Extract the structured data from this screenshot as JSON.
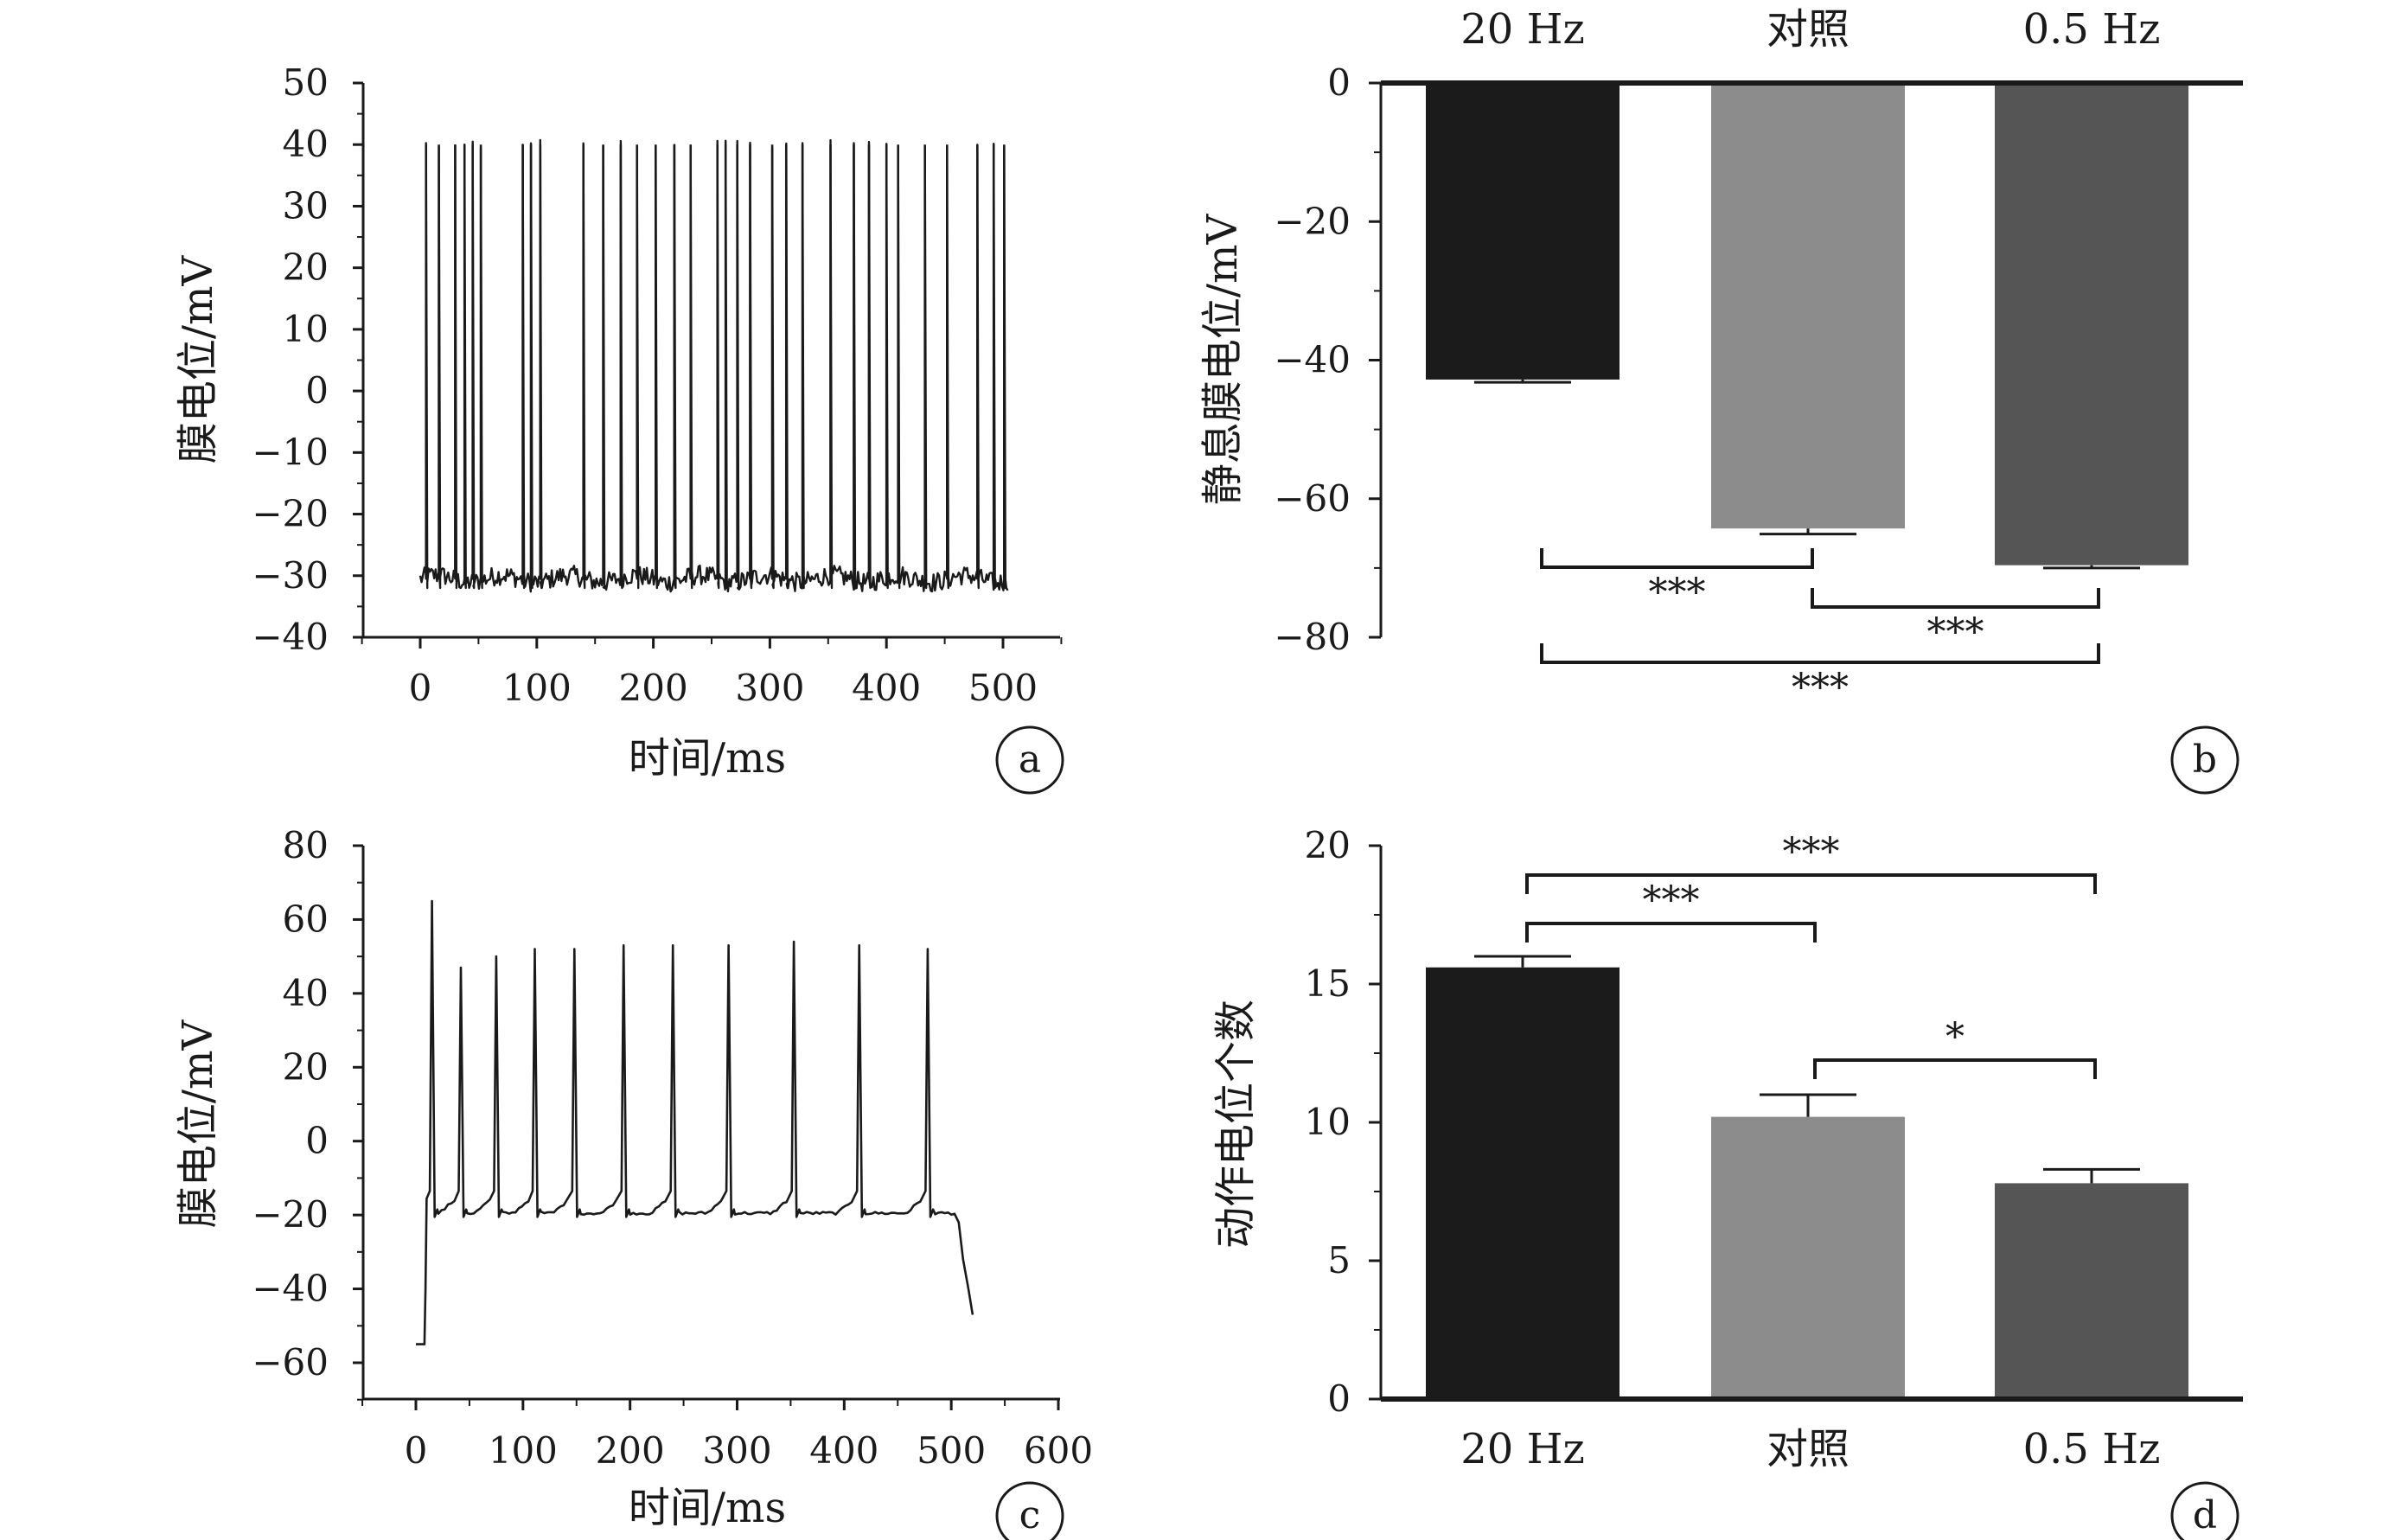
{
  "chart_data": [
    {
      "panel": "a",
      "type": "line",
      "xlabel": "时间/ms",
      "ylabel": "膜电位/mV",
      "xticks": [
        0,
        100,
        200,
        300,
        400,
        500
      ],
      "yticks": [
        50,
        40,
        30,
        20,
        10,
        0,
        -10,
        -20,
        -30,
        -40
      ],
      "xlim": [
        -50,
        550
      ],
      "ylim": [
        -40,
        50
      ],
      "baseline_mV": -30.5,
      "spike_peak_mV": 40,
      "spike_times_ms": [
        5,
        16,
        30,
        38,
        45,
        52,
        88,
        95,
        103,
        140,
        157,
        172,
        186,
        202,
        218,
        232,
        255,
        262,
        272,
        283,
        302,
        314,
        328,
        352,
        372,
        385,
        400,
        410,
        433,
        452,
        478,
        492,
        501
      ]
    },
    {
      "panel": "b",
      "type": "bar",
      "categories": [
        "20 Hz",
        "对照",
        "0.5 Hz"
      ],
      "values": [
        -42.8,
        -64.3,
        -69.6
      ],
      "errors": [
        0.4,
        0.8,
        0.4
      ],
      "ylabel": "静息膜电位/mV",
      "yticks": [
        0,
        -20,
        -40,
        -60,
        -80
      ],
      "ylim": [
        -80,
        0
      ],
      "xaxis_position": "top",
      "bar_colors": [
        "#1b1b1b",
        "#8c8c8c",
        "#555555"
      ],
      "significance": [
        {
          "from": 0,
          "to": 1,
          "label": "***"
        },
        {
          "from": 1,
          "to": 2,
          "label": "***"
        },
        {
          "from": 0,
          "to": 2,
          "label": "***"
        }
      ]
    },
    {
      "panel": "c",
      "type": "line",
      "xlabel": "时间/ms",
      "ylabel": "膜电位/mV",
      "xticks": [
        0,
        100,
        200,
        300,
        400,
        500,
        600
      ],
      "yticks": [
        80,
        60,
        40,
        20,
        0,
        -20,
        -40,
        -60
      ],
      "xlim": [
        -60,
        600
      ],
      "ylim": [
        -70,
        80
      ],
      "rest_mV": -55,
      "plateau_mV": -19.5,
      "spikes": [
        {
          "t": 15,
          "peak": 65
        },
        {
          "t": 42,
          "peak": 47
        },
        {
          "t": 75,
          "peak": 50
        },
        {
          "t": 111,
          "peak": 52
        },
        {
          "t": 148,
          "peak": 52
        },
        {
          "t": 194,
          "peak": 53
        },
        {
          "t": 240,
          "peak": 53
        },
        {
          "t": 292,
          "peak": 53
        },
        {
          "t": 353,
          "peak": 54
        },
        {
          "t": 414,
          "peak": 53
        },
        {
          "t": 478,
          "peak": 52
        }
      ],
      "stim_end_ms": 505,
      "end_mV": -47,
      "end_ms": 520
    },
    {
      "panel": "d",
      "type": "bar",
      "categories": [
        "20 Hz",
        "对照",
        "0.5 Hz"
      ],
      "values": [
        15.6,
        10.2,
        7.8
      ],
      "errors": [
        0.4,
        0.8,
        0.5
      ],
      "ylabel": "动作电位个数",
      "yticks": [
        20,
        15,
        10,
        5,
        0
      ],
      "ylim": [
        0,
        20
      ],
      "bar_colors": [
        "#1b1b1b",
        "#8c8c8c",
        "#555555"
      ],
      "significance": [
        {
          "from": 0,
          "to": 2,
          "label": "***"
        },
        {
          "from": 0,
          "to": 1,
          "label": "***"
        },
        {
          "from": 1,
          "to": 2,
          "label": "*"
        }
      ]
    }
  ]
}
